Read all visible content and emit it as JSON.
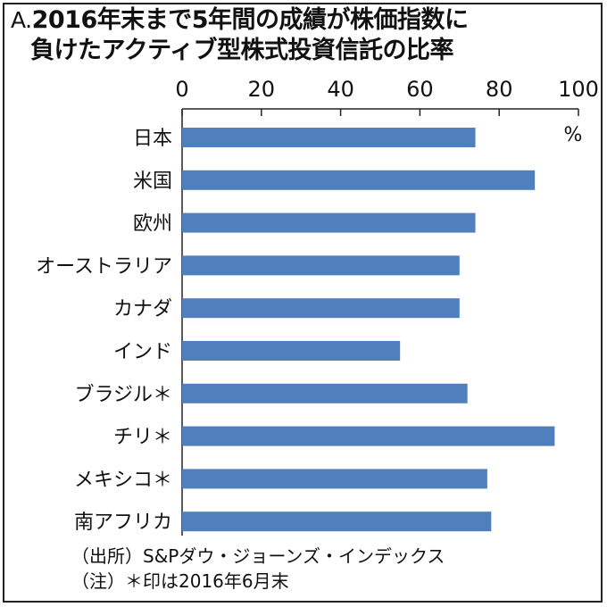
{
  "title": {
    "prefix": "A.",
    "line1": "2016年末まで5年間の成績が株価指数に",
    "line2": "負けたアクティブ型株式投資信託の比率"
  },
  "chart_data": {
    "type": "bar",
    "orientation": "horizontal",
    "categories": [
      "日本",
      "米国",
      "欧州",
      "オーストラリア",
      "カナダ",
      "インド",
      "ブラジル＊",
      "チリ＊",
      "メキシコ＊",
      "南アフリカ"
    ],
    "values": [
      74,
      89,
      74,
      70,
      70,
      55,
      72,
      94,
      77,
      78
    ],
    "xlim": [
      0,
      100
    ],
    "xticks": [
      "0",
      "20",
      "40",
      "60",
      "80",
      "100"
    ],
    "unit_label": "%",
    "bar_color": "#4f7fbd",
    "grid": false
  },
  "footer": {
    "source": "（出所）S&Pダウ・ジョーンズ・インデックス",
    "note": "（注）＊印は2016年6月末"
  }
}
